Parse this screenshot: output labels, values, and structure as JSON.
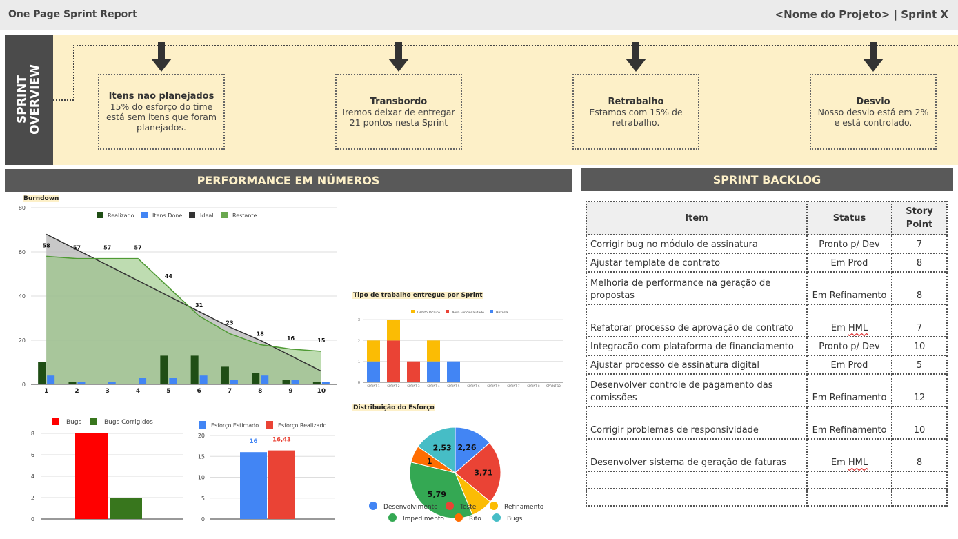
{
  "header": {
    "title": "One Page Sprint Report",
    "project": "<Nome do Projeto> | Sprint X"
  },
  "overview": {
    "label": "SPRINT\nOVERVIEW",
    "cards": [
      {
        "title": "Itens não planejados",
        "text": "15% do esforço do time está sem itens que foram planejados."
      },
      {
        "title": "Transbordo",
        "text": "Iremos deixar de entregar 21 pontos nesta Sprint"
      },
      {
        "title": "Retrabalho",
        "text": "Estamos com 15% de retrabalho."
      },
      {
        "title": "Desvio",
        "text": "Nosso desvio está em 2% e está controlado."
      }
    ]
  },
  "sections": {
    "performance": "PERFORMANCE EM NÚMEROS",
    "backlog": "SPRINT BACKLOG"
  },
  "colors": {
    "dark": "#595959",
    "cream": "#fdf0c8",
    "green_dark": "#1f4e15",
    "blue": "#4285f4",
    "red": "#ea4335",
    "yellow": "#fbbc04",
    "green": "#34a853",
    "orange": "#ff6d01",
    "teal": "#46bdc6"
  },
  "chart_data": [
    {
      "type": "bar",
      "title": "Burndown",
      "categories": [
        "1",
        "2",
        "3",
        "4",
        "5",
        "6",
        "7",
        "8",
        "9",
        "10"
      ],
      "ylim": [
        0,
        80
      ],
      "yticks": [
        "0",
        "20",
        "40",
        "60",
        "80"
      ],
      "legend": [
        "Realizado",
        "Itens Done",
        "Ideal",
        "Restante"
      ],
      "series": [
        {
          "name": "Realizado",
          "values": [
            10,
            1,
            0,
            0,
            13,
            13,
            8,
            5,
            2,
            1
          ]
        },
        {
          "name": "Itens Done",
          "values": [
            4,
            1,
            1,
            3,
            3,
            4,
            2,
            4,
            2,
            1
          ]
        },
        {
          "name": "Ideal",
          "values": [
            68,
            61,
            54,
            47,
            40,
            33,
            26,
            20,
            13,
            6
          ]
        },
        {
          "name": "Restante",
          "values": [
            58,
            57,
            57,
            57,
            44,
            31,
            23,
            18,
            16,
            15
          ]
        }
      ],
      "data_labels": [
        "58",
        "57",
        "57",
        "57",
        "44",
        "31",
        "23",
        "18",
        "16",
        "15"
      ]
    },
    {
      "type": "bar",
      "title": "Tipo de trabalho entregue por Sprint",
      "categories": [
        "SPRINT 1",
        "SPRINT 2",
        "SPRINT 3",
        "SPRINT 4",
        "SPRINT 5",
        "SPRINT 6",
        "SPRINT 9",
        "SPRINT 7",
        "SPRINT 8",
        "SPRINT 10"
      ],
      "ylim": [
        0,
        3
      ],
      "yticks": [
        "0",
        "1",
        "2",
        "3"
      ],
      "legend": [
        "Débito Técnico",
        "Nova Funcionalidade",
        "História"
      ],
      "series": [
        {
          "name": "História",
          "values": [
            1,
            0,
            0,
            1,
            1,
            0,
            0,
            0,
            0,
            0
          ]
        },
        {
          "name": "Nova Funcionalidade",
          "values": [
            0,
            2,
            1,
            0,
            0,
            0,
            0,
            0,
            0,
            0
          ]
        },
        {
          "name": "Débito Técnico",
          "values": [
            1,
            1,
            0,
            1,
            0,
            0,
            0,
            0,
            0,
            0
          ]
        }
      ]
    },
    {
      "type": "pie",
      "title": "Distribuição do Esforço",
      "labels": [
        "Desenvolvimento",
        "Teste",
        "Refinamento",
        "Impedimento",
        "Rito",
        "Bugs"
      ],
      "values": [
        2.26,
        3.71,
        1.3,
        5.79,
        1,
        2.53
      ],
      "slice_labels": [
        "2,26",
        "3,71",
        "",
        "5,79",
        "1",
        "2,53"
      ]
    },
    {
      "type": "bar",
      "categories": [
        ""
      ],
      "ylim": [
        0,
        8
      ],
      "yticks": [
        "0",
        "2",
        "4",
        "6",
        "8"
      ],
      "series": [
        {
          "name": "Bugs",
          "values": [
            8
          ]
        },
        {
          "name": "Bugs Corrigidos",
          "values": [
            2
          ]
        }
      ]
    },
    {
      "type": "bar",
      "categories": [
        ""
      ],
      "ylim": [
        0,
        20
      ],
      "yticks": [
        "0",
        "5",
        "10",
        "15",
        "20"
      ],
      "series": [
        {
          "name": "Esforço Estimado",
          "values": [
            16
          ]
        },
        {
          "name": "Esforço Realizado",
          "values": [
            16.43
          ]
        }
      ],
      "data_labels": [
        "16",
        "16,43"
      ]
    }
  ],
  "backlog": {
    "headers": [
      "Item",
      "Status",
      "Story\nPoint"
    ],
    "rows": [
      {
        "item": "Corrigir bug no módulo de assinatura",
        "status": "Pronto p/ Dev",
        "points": "7"
      },
      {
        "item": "Ajustar template de contrato",
        "status": "Em Prod",
        "points": "8"
      },
      {
        "item": "Melhoria de performance na geração de propostas",
        "status": "Em Refinamento",
        "points": "8"
      },
      {
        "item": "Refatorar processo de aprovação de contrato",
        "status": "Em HML",
        "points": "7"
      },
      {
        "item": "Integração com plataforma de financiamento",
        "status": "Pronto p/ Dev",
        "points": "10"
      },
      {
        "item": "Ajustar processo de assinatura digital",
        "status": "Em Prod",
        "points": "5"
      },
      {
        "item": "Desenvolver controle de pagamento das comissões",
        "status": "Em Refinamento",
        "points": "12"
      },
      {
        "item": "Corrigir problemas de responsividade",
        "status": "Em Refinamento",
        "points": "10"
      },
      {
        "item": "Desenvolver sistema de geração de faturas",
        "status": "Em HML",
        "points": "8"
      },
      {
        "item": "",
        "status": "",
        "points": ""
      },
      {
        "item": "",
        "status": "",
        "points": ""
      }
    ]
  }
}
